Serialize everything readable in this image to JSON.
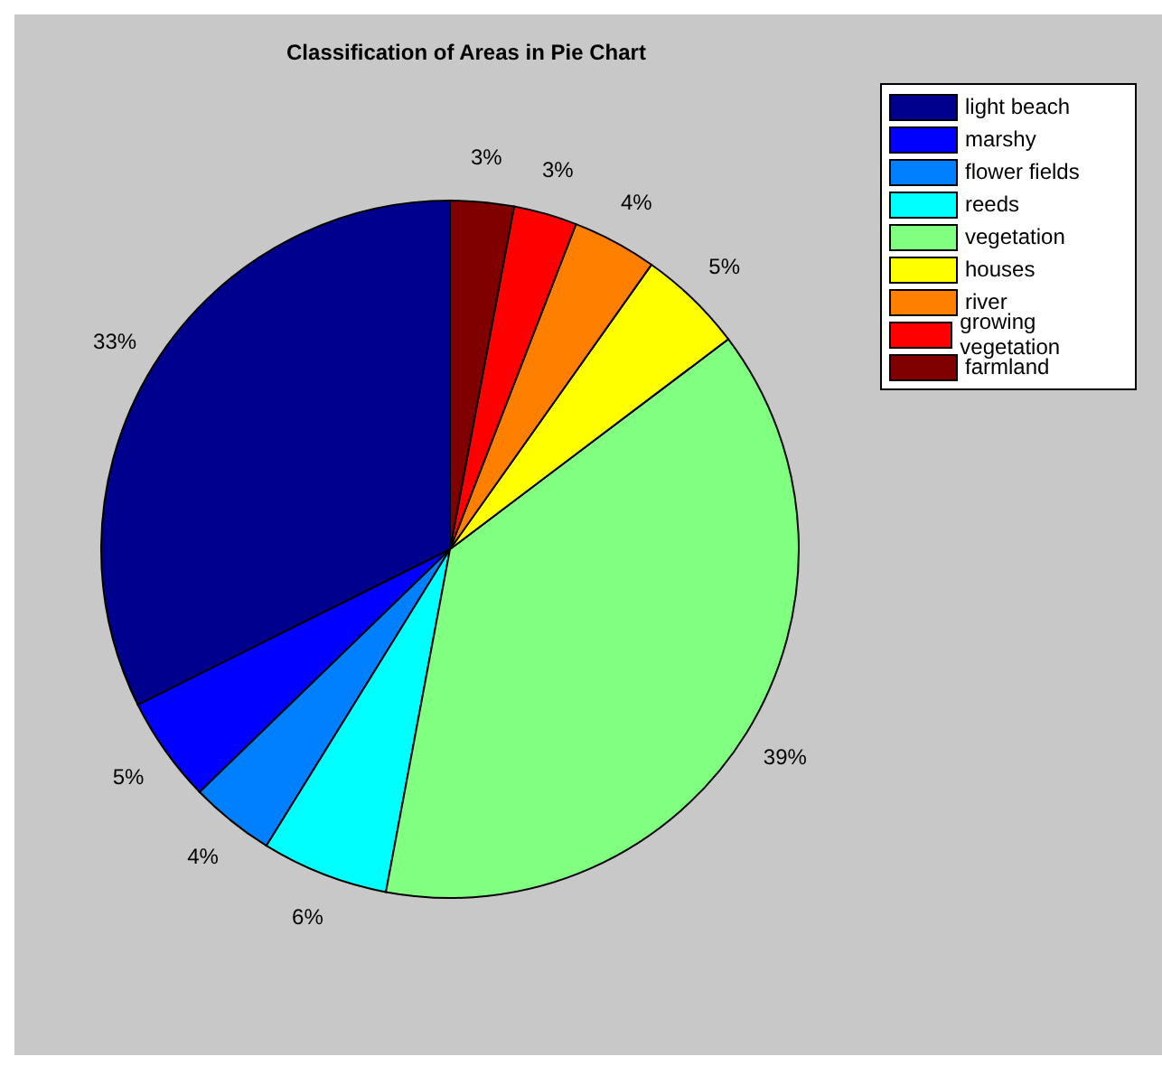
{
  "chart_data": {
    "type": "pie",
    "title": "Classification of Areas in Pie Chart",
    "categories": [
      "light beach",
      "marshy",
      "flower fields",
      "reeds",
      "vegetation",
      "houses",
      "river",
      "growing vegetation",
      "farmland"
    ],
    "values": [
      33,
      5,
      4,
      6,
      39,
      5,
      4,
      3,
      3
    ],
    "value_labels": [
      "33%",
      "5%",
      "4%",
      "6%",
      "39%",
      "5%",
      "4%",
      "3%",
      "3%"
    ],
    "colors": [
      "#00008f",
      "#0000ff",
      "#0080ff",
      "#00ffff",
      "#80ff80",
      "#ffff00",
      "#ff8000",
      "#ff0000",
      "#800000"
    ],
    "legend": "top right"
  }
}
